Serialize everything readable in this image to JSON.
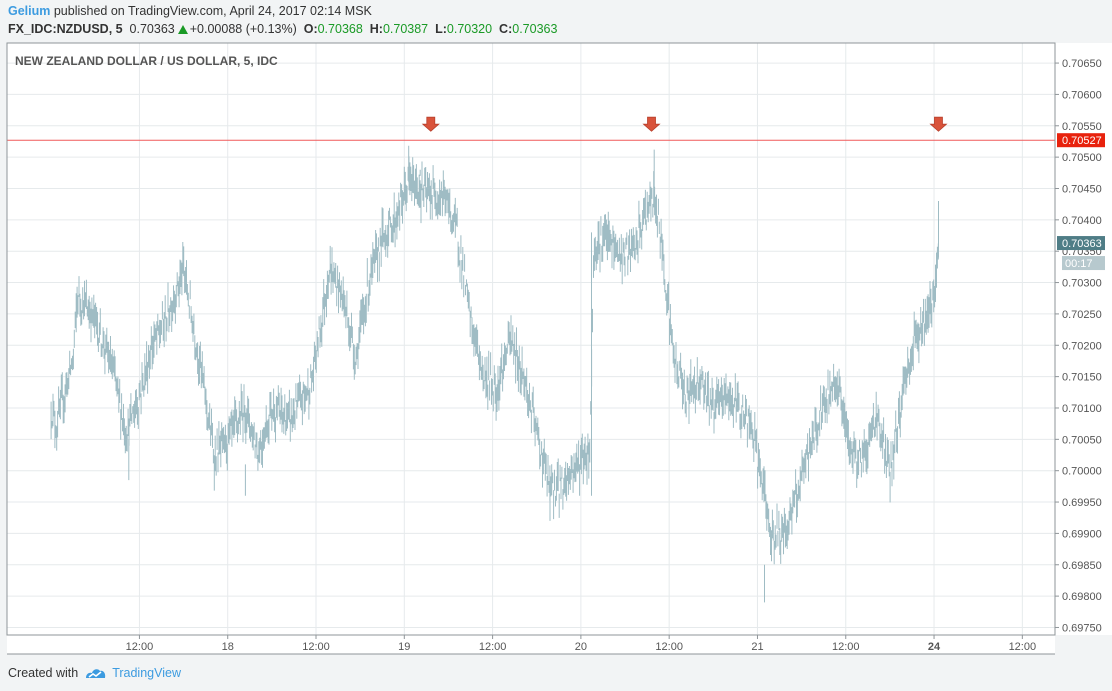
{
  "header": {
    "author": "Gelium",
    "published_text": "published on TradingView.com, April 24, 2017 02:14 MSK",
    "symbol": "FX_IDC:NZDUSD, 5",
    "last": "0.70363",
    "change": "+0.00088 (+0.13%)",
    "open_label": "O:",
    "open": "0.70368",
    "high_label": "H:",
    "high": "0.70387",
    "low_label": "L:",
    "low": "0.70320",
    "close_label": "C:",
    "close": "0.70363"
  },
  "chart_data": {
    "type": "bar",
    "title": "NEW ZEALAND DOLLAR / US DOLLAR, 5, IDC",
    "xlabel": "",
    "ylabel": "",
    "ylim": [
      0.69738,
      0.70682
    ],
    "y_ticks": [
      "0.69750",
      "0.69800",
      "0.69850",
      "0.69900",
      "0.69950",
      "0.70000",
      "0.70050",
      "0.70100",
      "0.70150",
      "0.70200",
      "0.70250",
      "0.70300",
      "0.70350",
      "0.70400",
      "0.70450",
      "0.70500",
      "0.70550",
      "0.70600",
      "0.70650"
    ],
    "x_range": [
      0,
      11.37
    ],
    "x_ticks": [
      {
        "label": "12:00",
        "x": 1
      },
      {
        "label": "18",
        "x": 2
      },
      {
        "label": "12:00",
        "x": 3
      },
      {
        "label": "19",
        "x": 4
      },
      {
        "label": "12:00",
        "x": 5
      },
      {
        "label": "20",
        "x": 6
      },
      {
        "label": "12:00",
        "x": 7
      },
      {
        "label": "21",
        "x": 8
      },
      {
        "label": "12:00",
        "x": 9
      },
      {
        "label": "24",
        "x": 10,
        "bold": true
      },
      {
        "label": "12:00",
        "x": 11
      }
    ],
    "price_path": [
      [
        0.0,
        0.701
      ],
      [
        0.06,
        0.7007
      ],
      [
        0.25,
        0.7018
      ],
      [
        0.3,
        0.7028
      ],
      [
        0.5,
        0.7024
      ],
      [
        0.7,
        0.7016
      ],
      [
        0.85,
        0.7006
      ],
      [
        1.0,
        0.7012
      ],
      [
        1.15,
        0.702
      ],
      [
        1.3,
        0.7024
      ],
      [
        1.5,
        0.7032
      ],
      [
        1.7,
        0.7016
      ],
      [
        1.85,
        0.7002
      ],
      [
        2.05,
        0.7006
      ],
      [
        2.2,
        0.701
      ],
      [
        2.35,
        0.7003
      ],
      [
        2.5,
        0.701
      ],
      [
        2.7,
        0.7008
      ],
      [
        2.95,
        0.7014
      ],
      [
        3.15,
        0.7032
      ],
      [
        3.3,
        0.7028
      ],
      [
        3.45,
        0.7018
      ],
      [
        3.6,
        0.703
      ],
      [
        3.75,
        0.7037
      ],
      [
        3.9,
        0.704
      ],
      [
        4.05,
        0.7046
      ],
      [
        4.25,
        0.7044
      ],
      [
        4.45,
        0.7044
      ],
      [
        4.6,
        0.7038
      ],
      [
        4.75,
        0.7024
      ],
      [
        4.9,
        0.7015
      ],
      [
        5.05,
        0.7013
      ],
      [
        5.2,
        0.7021
      ],
      [
        5.35,
        0.7015
      ],
      [
        5.5,
        0.7006
      ],
      [
        5.65,
        0.6997
      ],
      [
        5.8,
        0.6998
      ],
      [
        5.95,
        0.7001
      ],
      [
        6.1,
        0.7003
      ],
      [
        6.15,
        0.7036
      ],
      [
        6.3,
        0.7037
      ],
      [
        6.45,
        0.7034
      ],
      [
        6.6,
        0.7035
      ],
      [
        6.75,
        0.7042
      ],
      [
        6.85,
        0.7043
      ],
      [
        6.95,
        0.7032
      ],
      [
        7.05,
        0.7018
      ],
      [
        7.2,
        0.7012
      ],
      [
        7.35,
        0.7015
      ],
      [
        7.5,
        0.701
      ],
      [
        7.65,
        0.7012
      ],
      [
        7.8,
        0.701
      ],
      [
        7.95,
        0.7006
      ],
      [
        8.15,
        0.699
      ],
      [
        8.3,
        0.699
      ],
      [
        8.45,
        0.6996
      ],
      [
        8.6,
        0.7004
      ],
      [
        8.75,
        0.701
      ],
      [
        8.9,
        0.7015
      ],
      [
        9.05,
        0.7003
      ],
      [
        9.2,
        0.7002
      ],
      [
        9.35,
        0.7009
      ],
      [
        9.5,
        0.6999
      ],
      [
        9.65,
        0.7013
      ],
      [
        9.8,
        0.7022
      ],
      [
        9.95,
        0.7025
      ],
      [
        10.05,
        0.7034
      ]
    ],
    "extremes": [
      {
        "x": 4.05,
        "low": 0.7046,
        "high": 0.70518
      },
      {
        "x": 4.18,
        "low": 0.7047,
        "high": 0.7048
      },
      {
        "x": 6.83,
        "low": 0.7043,
        "high": 0.70512
      },
      {
        "x": 8.08,
        "low": 0.6979,
        "high": 0.6985
      },
      {
        "x": 10.05,
        "low": 0.7034,
        "high": 0.7043
      },
      {
        "x": 0.88,
        "low": 0.69985,
        "high": 0.7005
      },
      {
        "x": 2.2,
        "low": 0.6996,
        "high": 0.7001
      },
      {
        "x": 5.65,
        "low": 0.6992,
        "high": 0.6996
      }
    ],
    "resistance_level": 0.70527,
    "resistance_label": "0.70527",
    "last_price": 0.70363,
    "last_price_label": "0.70363",
    "countdown_label": "00:17",
    "arrows": [
      {
        "x": 4.3
      },
      {
        "x": 6.8
      },
      {
        "x": 10.05
      }
    ],
    "colors": {
      "bars": "#9fbcc4",
      "resistance": "#f05a5a",
      "resistance_badge": "#e8220d",
      "last_price_badge": "#4f7d86",
      "countdown_badge": "#b7c9ce",
      "arrow": "#d9533b",
      "grid": "#e6eaec",
      "frame": "#8f9599"
    }
  },
  "footer": {
    "created_with": "Created with",
    "brand": "TradingView"
  }
}
